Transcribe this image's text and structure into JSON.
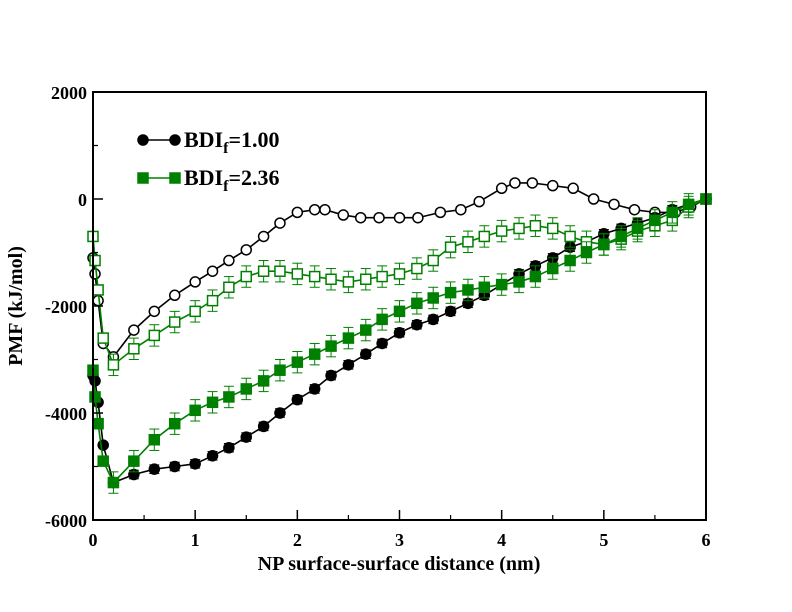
{
  "chart_data": {
    "type": "line",
    "title": "",
    "xlabel": "NP surface-surface distance (nm)",
    "ylabel": "PMF (kJ/mol)",
    "xlim": [
      0,
      6
    ],
    "ylim": [
      -6000,
      2000
    ],
    "x_ticks": [
      "0",
      "1",
      "2",
      "3",
      "4",
      "5",
      "6"
    ],
    "y_ticks": [
      "2000",
      "0",
      "-2000",
      "-4000",
      "-6000"
    ],
    "grid": false,
    "legend_position": "top-left",
    "legend": [
      {
        "prefix": "BDI",
        "sub": "f",
        "suffix": "=1.00",
        "color": "#000000",
        "marker": "circle"
      },
      {
        "prefix": "BDI",
        "sub": "f",
        "suffix": "=2.36",
        "color": "#008000",
        "marker": "square"
      }
    ],
    "series": [
      {
        "color": "#000000",
        "marker": "circle",
        "filled": false,
        "x": [
          0.0,
          0.02,
          0.05,
          0.1,
          0.2,
          0.4,
          0.6,
          0.8,
          1.0,
          1.17,
          1.33,
          1.5,
          1.67,
          1.83,
          2.0,
          2.17,
          2.27,
          2.45,
          2.62,
          2.8,
          3.0,
          3.18,
          3.4,
          3.6,
          3.78,
          4.0,
          4.13,
          4.3,
          4.5,
          4.7,
          4.9,
          5.1,
          5.3,
          5.5,
          5.7,
          5.85,
          6.0
        ],
        "values": [
          -1100,
          -1400,
          -1900,
          -2700,
          -2950,
          -2450,
          -2100,
          -1800,
          -1550,
          -1350,
          -1150,
          -950,
          -700,
          -450,
          -250,
          -200,
          -200,
          -300,
          -350,
          -350,
          -350,
          -350,
          -250,
          -200,
          -50,
          200,
          300,
          300,
          250,
          200,
          0,
          -100,
          -200,
          -250,
          -250,
          -150,
          0
        ],
        "err": [
          0,
          0,
          0,
          0,
          40,
          40,
          40,
          40,
          40,
          40,
          40,
          40,
          40,
          40,
          40,
          40,
          40,
          40,
          40,
          40,
          40,
          40,
          40,
          40,
          40,
          40,
          40,
          40,
          40,
          40,
          40,
          40,
          40,
          40,
          40,
          40,
          0
        ]
      },
      {
        "color": "#000000",
        "marker": "circle",
        "filled": true,
        "x": [
          0.0,
          0.02,
          0.05,
          0.1,
          0.2,
          0.4,
          0.6,
          0.8,
          1.0,
          1.17,
          1.33,
          1.5,
          1.67,
          1.83,
          2.0,
          2.17,
          2.33,
          2.5,
          2.67,
          2.83,
          3.0,
          3.17,
          3.33,
          3.5,
          3.67,
          3.83,
          4.0,
          4.17,
          4.33,
          4.5,
          4.67,
          4.83,
          5.0,
          5.17,
          5.33,
          5.5,
          5.67,
          5.83,
          6.0
        ],
        "values": [
          -3300,
          -3400,
          -3800,
          -4600,
          -5300,
          -5150,
          -5050,
          -5000,
          -4950,
          -4800,
          -4650,
          -4450,
          -4250,
          -4000,
          -3750,
          -3550,
          -3300,
          -3100,
          -2900,
          -2700,
          -2500,
          -2350,
          -2250,
          -2100,
          -1950,
          -1800,
          -1600,
          -1400,
          -1250,
          -1100,
          -900,
          -800,
          -650,
          -550,
          -450,
          -350,
          -200,
          -100,
          0
        ],
        "err": [
          0,
          0,
          0,
          0,
          80,
          80,
          80,
          80,
          80,
          80,
          80,
          80,
          80,
          80,
          80,
          80,
          80,
          80,
          80,
          80,
          80,
          80,
          80,
          80,
          80,
          80,
          80,
          80,
          80,
          80,
          80,
          80,
          80,
          80,
          80,
          80,
          80,
          80,
          0
        ]
      },
      {
        "color": "#008000",
        "marker": "square",
        "filled": false,
        "x": [
          0.0,
          0.02,
          0.05,
          0.1,
          0.2,
          0.4,
          0.6,
          0.8,
          1.0,
          1.17,
          1.33,
          1.5,
          1.67,
          1.83,
          2.0,
          2.17,
          2.33,
          2.5,
          2.67,
          2.83,
          3.0,
          3.17,
          3.33,
          3.5,
          3.67,
          3.83,
          4.0,
          4.17,
          4.33,
          4.5,
          4.67,
          4.83,
          5.0,
          5.17,
          5.33,
          5.5,
          5.67,
          5.83,
          6.0
        ],
        "values": [
          -700,
          -1150,
          -1700,
          -2600,
          -3100,
          -2800,
          -2550,
          -2300,
          -2100,
          -1900,
          -1650,
          -1450,
          -1350,
          -1350,
          -1400,
          -1450,
          -1500,
          -1550,
          -1500,
          -1450,
          -1400,
          -1300,
          -1150,
          -900,
          -800,
          -700,
          -600,
          -550,
          -500,
          -550,
          -700,
          -800,
          -850,
          -750,
          -600,
          -500,
          -400,
          -150,
          0
        ],
        "err": [
          0,
          0,
          0,
          0,
          200,
          200,
          200,
          200,
          200,
          200,
          200,
          200,
          200,
          200,
          200,
          200,
          200,
          200,
          200,
          200,
          200,
          200,
          200,
          200,
          200,
          200,
          200,
          200,
          200,
          200,
          200,
          200,
          200,
          200,
          200,
          200,
          200,
          200,
          0
        ]
      },
      {
        "color": "#008000",
        "marker": "square",
        "filled": true,
        "x": [
          0.0,
          0.02,
          0.05,
          0.1,
          0.2,
          0.4,
          0.6,
          0.8,
          1.0,
          1.17,
          1.33,
          1.5,
          1.67,
          1.83,
          2.0,
          2.17,
          2.33,
          2.5,
          2.67,
          2.83,
          3.0,
          3.17,
          3.33,
          3.5,
          3.67,
          3.83,
          4.0,
          4.17,
          4.33,
          4.5,
          4.67,
          4.83,
          5.0,
          5.17,
          5.33,
          5.5,
          5.67,
          5.83,
          6.0
        ],
        "values": [
          -3200,
          -3700,
          -4200,
          -4900,
          -5300,
          -4900,
          -4500,
          -4200,
          -3950,
          -3800,
          -3700,
          -3550,
          -3400,
          -3200,
          -3050,
          -2900,
          -2750,
          -2600,
          -2450,
          -2250,
          -2100,
          -1950,
          -1850,
          -1750,
          -1700,
          -1650,
          -1600,
          -1550,
          -1450,
          -1300,
          -1150,
          -1000,
          -850,
          -700,
          -550,
          -400,
          -250,
          -100,
          0
        ],
        "err": [
          0,
          0,
          0,
          0,
          200,
          200,
          200,
          200,
          200,
          200,
          200,
          200,
          200,
          200,
          200,
          200,
          200,
          200,
          200,
          200,
          200,
          200,
          200,
          200,
          200,
          200,
          200,
          200,
          200,
          200,
          200,
          200,
          200,
          200,
          200,
          200,
          200,
          200,
          0
        ]
      }
    ]
  }
}
